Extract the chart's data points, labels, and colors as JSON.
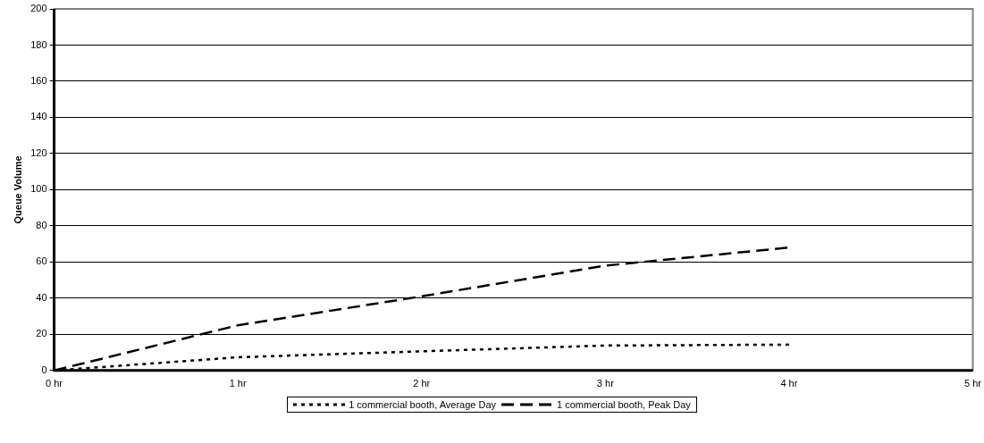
{
  "chart_data": {
    "type": "line",
    "ylabel": "Queue Volume",
    "x": [
      0,
      1,
      2,
      3,
      4
    ],
    "series": [
      {
        "name": "1 commercial booth, Average Day",
        "color": "#000000",
        "line_style": "dotted",
        "values": [
          0,
          7.3,
          10.6,
          13.8,
          14.3
        ]
      },
      {
        "name": "1 commercial booth, Peak Day",
        "color": "#000000",
        "line_style": "dashed",
        "values": [
          0,
          25,
          41,
          58,
          68
        ]
      }
    ],
    "xlim": [
      0,
      5
    ],
    "xticks": [
      {
        "value": 0,
        "label": "0 hr"
      },
      {
        "value": 1,
        "label": "1 hr"
      },
      {
        "value": 2,
        "label": "2 hr"
      },
      {
        "value": 3,
        "label": "3 hr"
      },
      {
        "value": 4,
        "label": "4 hr"
      },
      {
        "value": 5,
        "label": "5 hr"
      }
    ],
    "ylim": [
      0,
      200
    ],
    "yticks": [
      0,
      20,
      40,
      60,
      80,
      100,
      120,
      140,
      160,
      180,
      200
    ],
    "grid": "y",
    "legend": "bottom",
    "marker": "none"
  }
}
